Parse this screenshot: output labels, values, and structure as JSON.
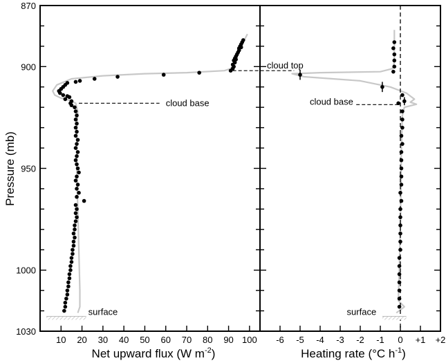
{
  "chart_data": [
    {
      "type": "scatter",
      "panel": "left",
      "xlabel": "Net upward flux (W m",
      "xlabel_sup": "-2",
      "xlabel_tail": ")",
      "ylabel": "Pressure (mb)",
      "xlim": [
        0,
        105
      ],
      "ylim": [
        870,
        1030
      ],
      "y_inverted": true,
      "x_ticks": [
        10,
        20,
        30,
        40,
        50,
        60,
        70,
        80,
        90,
        100
      ],
      "x_tick_labels": [
        "10",
        "20",
        "30",
        "40",
        "50",
        "60",
        "70",
        "80",
        "90",
        "100"
      ],
      "y_major_ticks": [
        870,
        900,
        950,
        1000,
        1030
      ],
      "y_tick_labels": [
        "870",
        "900",
        "950",
        "1000",
        "1030"
      ],
      "y_minor_ticks": [
        880,
        890,
        910,
        920,
        930,
        940,
        960,
        970,
        980,
        990,
        1010,
        1020
      ],
      "grid": false,
      "series": [
        {
          "kind": "points",
          "points": [
            [
              97,
              887
            ],
            [
              96.5,
              888
            ],
            [
              96,
              889
            ],
            [
              95.5,
              890
            ],
            [
              95,
              891
            ],
            [
              96,
              890.5
            ],
            [
              95,
              892
            ],
            [
              94.5,
              893
            ],
            [
              94,
              894
            ],
            [
              93.5,
              895
            ],
            [
              93,
              896
            ],
            [
              93.5,
              896.5
            ],
            [
              92.5,
              897
            ],
            [
              93,
              898
            ],
            [
              92,
              899
            ],
            [
              92.5,
              900
            ],
            [
              92,
              901
            ],
            [
              91,
              902
            ],
            [
              76,
              903
            ],
            [
              59,
              904
            ],
            [
              37,
              905
            ],
            [
              26,
              906
            ],
            [
              19,
              907
            ],
            [
              17,
              907.5
            ],
            [
              13,
              908
            ],
            [
              12,
              909
            ],
            [
              11,
              910
            ],
            [
              10,
              911
            ],
            [
              9,
              912
            ],
            [
              9.5,
              913
            ],
            [
              11,
              914
            ],
            [
              13,
              914.5
            ],
            [
              14,
              915
            ],
            [
              12,
              916
            ],
            [
              15,
              917
            ],
            [
              14.5,
              918
            ],
            [
              15,
              919
            ],
            [
              16.5,
              920
            ],
            [
              17,
              922
            ],
            [
              17.5,
              924
            ],
            [
              17,
              926
            ],
            [
              17.5,
              928
            ],
            [
              17,
              930
            ],
            [
              17.5,
              932
            ],
            [
              17,
              934
            ],
            [
              18,
              936
            ],
            [
              17.5,
              938
            ],
            [
              17,
              940
            ],
            [
              18,
              942
            ],
            [
              17.5,
              944
            ],
            [
              17,
              946
            ],
            [
              17.5,
              948
            ],
            [
              18,
              950
            ],
            [
              18.5,
              952
            ],
            [
              17.5,
              954
            ],
            [
              17,
              956
            ],
            [
              18,
              958
            ],
            [
              17.5,
              960
            ],
            [
              18.5,
              962
            ],
            [
              17.5,
              964
            ],
            [
              21,
              966
            ],
            [
              17,
              968
            ],
            [
              17.5,
              970
            ],
            [
              17,
              972
            ],
            [
              17.5,
              974
            ],
            [
              17,
              976
            ],
            [
              16.5,
              978
            ],
            [
              16.5,
              980
            ],
            [
              16,
              982
            ],
            [
              16.5,
              984
            ],
            [
              16,
              986
            ],
            [
              16,
              988
            ],
            [
              15.5,
              990
            ],
            [
              15.5,
              992
            ],
            [
              15,
              994
            ],
            [
              15,
              996
            ],
            [
              14.5,
              998
            ],
            [
              14.5,
              1000
            ],
            [
              14,
              1002
            ],
            [
              14,
              1004
            ],
            [
              13.5,
              1006
            ],
            [
              13.5,
              1008
            ],
            [
              13,
              1010
            ],
            [
              13,
              1012
            ],
            [
              12.5,
              1014
            ],
            [
              12,
              1016
            ],
            [
              12,
              1018
            ],
            [
              11.5,
              1020
            ]
          ]
        },
        {
          "kind": "model-curve",
          "color": "#c8c8c8",
          "points": [
            [
              99,
              884
            ],
            [
              97,
              888
            ],
            [
              95,
              893
            ],
            [
              93,
              898
            ],
            [
              91,
              901
            ],
            [
              88,
              902
            ],
            [
              70,
              903
            ],
            [
              50,
              903.5
            ],
            [
              30,
              904.5
            ],
            [
              15,
              906
            ],
            [
              8,
              909
            ],
            [
              6,
              912
            ],
            [
              7,
              914
            ],
            [
              10,
              915.5
            ],
            [
              14,
              916.5
            ],
            [
              17,
              918
            ],
            [
              18,
              922
            ],
            [
              17.5,
              930
            ],
            [
              17.5,
              950
            ],
            [
              18.5,
              990
            ],
            [
              19,
              1010
            ],
            [
              19,
              1018
            ],
            [
              18,
              1021
            ]
          ]
        }
      ],
      "annotations": [
        {
          "text": "cloud base",
          "y": 918
        },
        {
          "text": "surface",
          "y": 1021
        }
      ]
    },
    {
      "type": "scatter",
      "panel": "right",
      "xlabel": "Heating rate (°C h",
      "xlabel_sup": "-1",
      "xlabel_tail": ")",
      "xlim": [
        -7,
        2
      ],
      "ylim": [
        870,
        1030
      ],
      "y_inverted": true,
      "x_ticks": [
        -6,
        -5,
        -4,
        -3,
        -2,
        -1,
        0,
        1,
        2
      ],
      "x_tick_labels": [
        "-6",
        "-5",
        "-4",
        "-3",
        "-2",
        "-1",
        "0",
        "+1",
        "+2"
      ],
      "grid": false,
      "series": [
        {
          "kind": "points",
          "points": [
            [
              -0.3,
              888
            ],
            [
              -0.35,
              891
            ],
            [
              -0.3,
              894
            ],
            [
              -0.3,
              897
            ],
            [
              -0.3,
              900
            ],
            [
              -0.35,
              902.5
            ],
            [
              -5,
              904
            ],
            [
              -0.9,
              910
            ],
            [
              0.1,
              914
            ],
            [
              0.2,
              917
            ],
            [
              -0.1,
              918
            ],
            [
              0.1,
              922
            ],
            [
              0.1,
              926
            ],
            [
              0.1,
              930
            ],
            [
              0.05,
              934
            ],
            [
              0.1,
              938
            ],
            [
              0.05,
              942
            ],
            [
              0.05,
              946
            ],
            [
              0.05,
              950
            ],
            [
              0.05,
              954
            ],
            [
              0.05,
              958
            ],
            [
              0,
              962
            ],
            [
              0.05,
              966
            ],
            [
              0,
              970
            ],
            [
              0,
              974
            ],
            [
              0,
              978
            ],
            [
              0,
              982
            ],
            [
              0,
              986
            ],
            [
              0,
              990
            ],
            [
              -0.05,
              994
            ],
            [
              -0.05,
              998
            ],
            [
              -0.05,
              1002
            ],
            [
              -0.05,
              1006
            ],
            [
              -0.05,
              1010
            ],
            [
              -0.05,
              1014
            ],
            [
              -0.05,
              1018
            ]
          ],
          "error_bars": [
            {
              "x": -5,
              "y": 904,
              "dy": 2.5
            },
            {
              "x": -0.9,
              "y": 910,
              "dy": 2.5
            },
            {
              "x": 0.2,
              "y": 917,
              "dy": 2
            }
          ]
        },
        {
          "kind": "model-curve",
          "color": "#c8c8c8",
          "points": [
            [
              -0.3,
              882
            ],
            [
              -0.3,
              890
            ],
            [
              -0.3,
              898
            ],
            [
              -0.4,
              901
            ],
            [
              -1,
              902.5
            ],
            [
              -4,
              903
            ],
            [
              -5.4,
              903.5
            ],
            [
              -4.8,
              905
            ],
            [
              -2,
              907
            ],
            [
              -0.5,
              910
            ],
            [
              0.3,
              913
            ],
            [
              0.7,
              916
            ],
            [
              0.5,
              917.5
            ],
            [
              0.8,
              918.5
            ],
            [
              0.2,
              920
            ],
            [
              0.1,
              924
            ],
            [
              0.05,
              940
            ],
            [
              0,
              980
            ],
            [
              -0.1,
              1015
            ],
            [
              0.2,
              1018
            ],
            [
              -0.2,
              1021
            ]
          ]
        },
        {
          "kind": "zero-line",
          "x": 0,
          "style": "dashed"
        }
      ],
      "annotations": [
        {
          "text": "cloud top",
          "y": 902
        },
        {
          "text": "cloud base",
          "y": 918
        },
        {
          "text": "surface",
          "y": 1021
        }
      ]
    }
  ]
}
